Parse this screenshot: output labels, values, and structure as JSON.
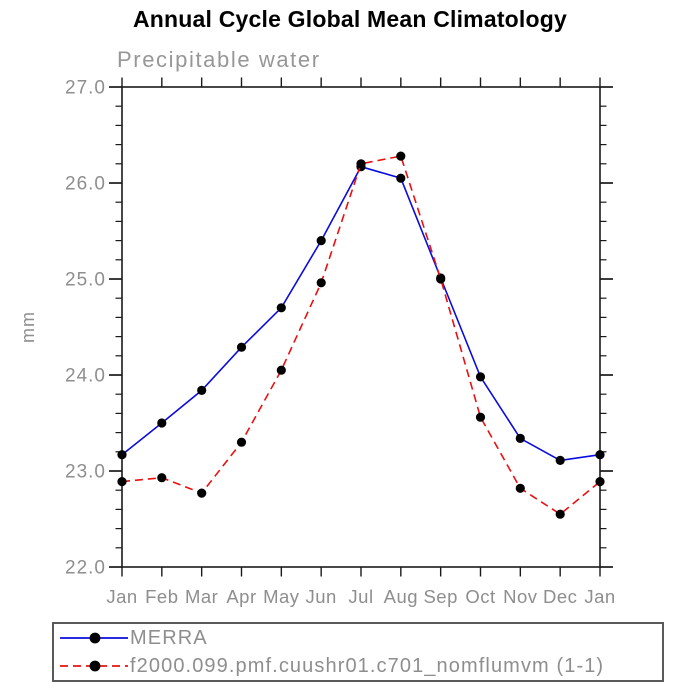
{
  "header": {
    "title": "Annual Cycle Global Mean Climatology",
    "subtitle": "Precipitable water"
  },
  "chart_data": {
    "type": "line",
    "title": "Annual Cycle Global Mean Climatology",
    "subtitle": "Precipitable water",
    "ylabel": "mm",
    "xlabel": "",
    "x_categories": [
      "Jan",
      "Feb",
      "Mar",
      "Apr",
      "May",
      "Jun",
      "Jul",
      "Aug",
      "Sep",
      "Oct",
      "Nov",
      "Dec",
      "Jan"
    ],
    "ylim": [
      22.0,
      27.0
    ],
    "ytick_labels": [
      "22.0",
      "23.0",
      "24.0",
      "25.0",
      "26.0",
      "27.0"
    ],
    "ytick_major_values": [
      22.0,
      23.0,
      24.0,
      25.0,
      26.0,
      27.0
    ],
    "ytick_minor_interval": 0.2,
    "grid": "off",
    "legend_position": "bottom",
    "axis_color": "#1a1a1a",
    "label_color": "#8e8e8e",
    "marker_color": "#000000",
    "series": [
      {
        "name": "MERRA",
        "color": "#0b0bdf",
        "style": "solid",
        "marker": "filled-circle",
        "values": [
          23.17,
          23.5,
          23.84,
          24.29,
          24.7,
          25.4,
          26.17,
          26.05,
          25.01,
          23.98,
          23.34,
          23.11,
          23.17
        ]
      },
      {
        "name": "f2000.099.pmf.cuushr01.c701_nomflumvm (1-1)",
        "color": "#ea1010",
        "style": "dashed",
        "marker": "filled-circle",
        "values": [
          22.89,
          22.93,
          22.77,
          23.3,
          24.05,
          24.96,
          26.2,
          26.28,
          25.0,
          23.56,
          22.82,
          22.55,
          22.89
        ]
      }
    ]
  }
}
